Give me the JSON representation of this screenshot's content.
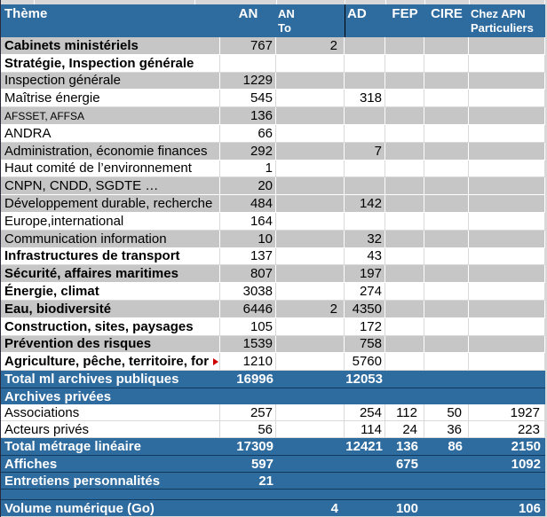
{
  "colors": {
    "header_blue": "#2e6b9f",
    "row_gray": "#c6c6c6",
    "row_white": "#ffffff",
    "dark_separator": "#123a5e",
    "grid_light": "#d9d9d9",
    "page_background": "#d8d8d8",
    "truncation_arrow_red": "#cc0000",
    "header_text": "#ffffff",
    "body_text": "#000000"
  },
  "table": {
    "columns": [
      {
        "key": "theme",
        "label": "Thème",
        "sublabel": ""
      },
      {
        "key": "an",
        "label": "AN",
        "sublabel": ""
      },
      {
        "key": "an_to",
        "label": "AN",
        "sublabel": "To"
      },
      {
        "key": "ad",
        "label": "AD",
        "sublabel": ""
      },
      {
        "key": "fep",
        "label": "FEP",
        "sublabel": ""
      },
      {
        "key": "cire",
        "label": "CIRE",
        "sublabel": ""
      },
      {
        "key": "chez",
        "label": "Chez APN",
        "sublabel": "Particuliers"
      }
    ],
    "rows": [
      {
        "theme": "Cabinets ministériels",
        "an": "767",
        "an_to": "2",
        "ad": "",
        "fep": "",
        "cire": "",
        "chez": "",
        "bg": "gray",
        "bold": true,
        "tall": true
      },
      {
        "theme": "Stratégie, Inspection générale",
        "an": "",
        "an_to": "",
        "ad": "",
        "fep": "",
        "cire": "",
        "chez": "",
        "bg": "white",
        "bold": true,
        "tall": true
      },
      {
        "theme": "Inspection générale",
        "an": "1229",
        "an_to": "",
        "ad": "",
        "fep": "",
        "cire": "",
        "chez": "",
        "bg": "gray",
        "bold": false,
        "tall": true
      },
      {
        "theme": "Maîtrise énergie",
        "an": "545",
        "an_to": "",
        "ad": "318",
        "fep": "",
        "cire": "",
        "chez": "",
        "bg": "white",
        "bold": false,
        "tall": true
      },
      {
        "theme": "AFSSET, AFFSA",
        "an": "136",
        "an_to": "",
        "ad": "",
        "fep": "",
        "cire": "",
        "chez": "",
        "bg": "gray",
        "bold": false,
        "small": true,
        "tall": true
      },
      {
        "theme": "ANDRA",
        "an": "66",
        "an_to": "",
        "ad": "",
        "fep": "",
        "cire": "",
        "chez": "",
        "bg": "white",
        "bold": false,
        "tall": true
      },
      {
        "theme": "Administration, économie finances",
        "an": "292",
        "an_to": "",
        "ad": "7",
        "fep": "",
        "cire": "",
        "chez": "",
        "bg": "gray",
        "bold": false,
        "tall": true
      },
      {
        "theme": "Haut comité de l’environnement",
        "an": "1",
        "an_to": "",
        "ad": "",
        "fep": "",
        "cire": "",
        "chez": "",
        "bg": "white",
        "bold": false,
        "tall": true
      },
      {
        "theme": "CNPN, CNDD, SGDTE …",
        "an": "20",
        "an_to": "",
        "ad": "",
        "fep": "",
        "cire": "",
        "chez": "",
        "bg": "gray",
        "bold": false,
        "tall": true
      },
      {
        "theme": "Développement durable, recherche",
        "an": "484",
        "an_to": "",
        "ad": "142",
        "fep": "",
        "cire": "",
        "chez": "",
        "bg": "gray",
        "bold": false,
        "tall": true
      },
      {
        "theme": "Europe,international",
        "an": "164",
        "an_to": "",
        "ad": "",
        "fep": "",
        "cire": "",
        "chez": "",
        "bg": "white",
        "bold": false,
        "tall": true
      },
      {
        "theme": "Communication information",
        "an": "10",
        "an_to": "",
        "ad": "32",
        "fep": "",
        "cire": "",
        "chez": "",
        "bg": "gray",
        "bold": false,
        "tall": true
      },
      {
        "theme": "Infrastructures de transport",
        "an": "137",
        "an_to": "",
        "ad": "43",
        "fep": "",
        "cire": "",
        "chez": "",
        "bg": "white",
        "bold": true,
        "tall": true
      },
      {
        "theme": "Sécurité, affaires maritimes",
        "an": "807",
        "an_to": "",
        "ad": "197",
        "fep": "",
        "cire": "",
        "chez": "",
        "bg": "gray",
        "bold": true,
        "tall": true
      },
      {
        "theme": "Énergie, climat",
        "an": "3038",
        "an_to": "",
        "ad": "274",
        "fep": "",
        "cire": "",
        "chez": "",
        "bg": "white",
        "bold": true,
        "tall": true
      },
      {
        "theme": "Eau, biodiversité",
        "an": "6446",
        "an_to": "2",
        "ad": "4350",
        "fep": "",
        "cire": "",
        "chez": "",
        "bg": "gray",
        "bold": true,
        "tall": true
      },
      {
        "theme": "Construction, sites, paysages",
        "an": "105",
        "an_to": "",
        "ad": "172",
        "fep": "",
        "cire": "",
        "chez": "",
        "bg": "white",
        "bold": true,
        "tall": true
      },
      {
        "theme": "Prévention des risques",
        "an": "1539",
        "an_to": "",
        "ad": "758",
        "fep": "",
        "cire": "",
        "chez": "",
        "bg": "gray",
        "bold": true,
        "tall": true
      },
      {
        "theme": "Agriculture, pêche, territoire, for",
        "an": "1210",
        "an_to": "",
        "ad": "5760",
        "fep": "",
        "cire": "",
        "chez": "",
        "bg": "white",
        "bold": true,
        "truncated": true,
        "tall": true
      },
      {
        "theme": "Total ml archives publiques",
        "an": "16996",
        "an_to": "",
        "ad": "12053",
        "fep": "",
        "cire": "",
        "chez": "",
        "bg": "blue"
      },
      {
        "theme": "Archives privées",
        "an": "",
        "an_to": "",
        "ad": "",
        "fep": "",
        "cire": "",
        "chez": "",
        "bg": "blue",
        "sep": true
      },
      {
        "theme": "Associations",
        "an": "257",
        "an_to": "",
        "ad": "254",
        "fep": "112",
        "cire": "50",
        "chez": "1927",
        "bg": "white",
        "bold": false
      },
      {
        "theme": "Acteurs privés",
        "an": "56",
        "an_to": "",
        "ad": "114",
        "fep": "24",
        "cire": "36",
        "chez": "223",
        "bg": "white",
        "bold": false
      },
      {
        "theme": "Total métrage linéaire",
        "an": "17309",
        "an_to": "",
        "ad": "12421",
        "fep": "136",
        "cire": "86",
        "chez": "2150",
        "bg": "blue"
      },
      {
        "theme": "Affiches",
        "an": "597",
        "an_to": "",
        "ad": "",
        "fep": "675",
        "cire": "",
        "chez": "1092",
        "bg": "blue",
        "sep": true
      },
      {
        "theme": "Entretiens personnalités",
        "an": "21",
        "an_to": "",
        "ad": "",
        "fep": "",
        "cire": "",
        "chez": "",
        "bg": "blue",
        "sep": true
      },
      {
        "theme": "",
        "an": "",
        "an_to": "",
        "ad": "",
        "fep": "",
        "cire": "",
        "chez": "",
        "bg": "blue",
        "sep": true,
        "spacer": true
      },
      {
        "theme": "Volume numérique (Go)",
        "an": "",
        "an_to": "4",
        "ad": "",
        "fep": "100",
        "cire": "",
        "chez": "106",
        "bg": "blue",
        "sep": true
      }
    ]
  }
}
